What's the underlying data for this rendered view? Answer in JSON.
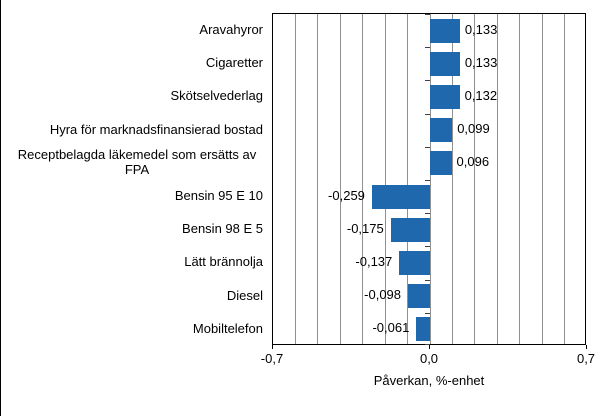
{
  "chart_data": {
    "type": "bar",
    "orientation": "horizontal",
    "title": "",
    "xlabel": "Påverkan, %-enhet",
    "ylabel": "",
    "categories": [
      "Aravahyror",
      "Cigaretter",
      "Skötselvederlag",
      "Hyra för marknadsfinansierad bostad",
      "Receptbelagda läkemedel som ersätts av FPA",
      "Bensin 95 E 10",
      "Bensin 98 E 5",
      "Lätt brännolja",
      "Diesel",
      "Mobiltelefon"
    ],
    "values": [
      0.133,
      0.133,
      0.132,
      0.099,
      0.096,
      -0.259,
      -0.175,
      -0.137,
      -0.098,
      -0.061
    ],
    "value_labels": [
      "0,133",
      "0,133",
      "0,132",
      "0,099",
      "0,096",
      "-0,259",
      "-0,175",
      "-0,137",
      "-0,098",
      "-0,061"
    ],
    "xlim": [
      -0.7,
      0.7
    ],
    "gridline_step": 0.1,
    "grid": true,
    "legend": "none",
    "x_ticks": [
      {
        "value": -0.7,
        "label": "-0,7"
      },
      {
        "value": 0.0,
        "label": "0,0"
      },
      {
        "value": 0.7,
        "label": "0,7"
      }
    ],
    "colors": {
      "bar": "#2068AE",
      "gridline": "#909090",
      "axis": "#000000",
      "category_tick": "#404040",
      "text": "#000000",
      "background": "#FFFFFF"
    }
  }
}
